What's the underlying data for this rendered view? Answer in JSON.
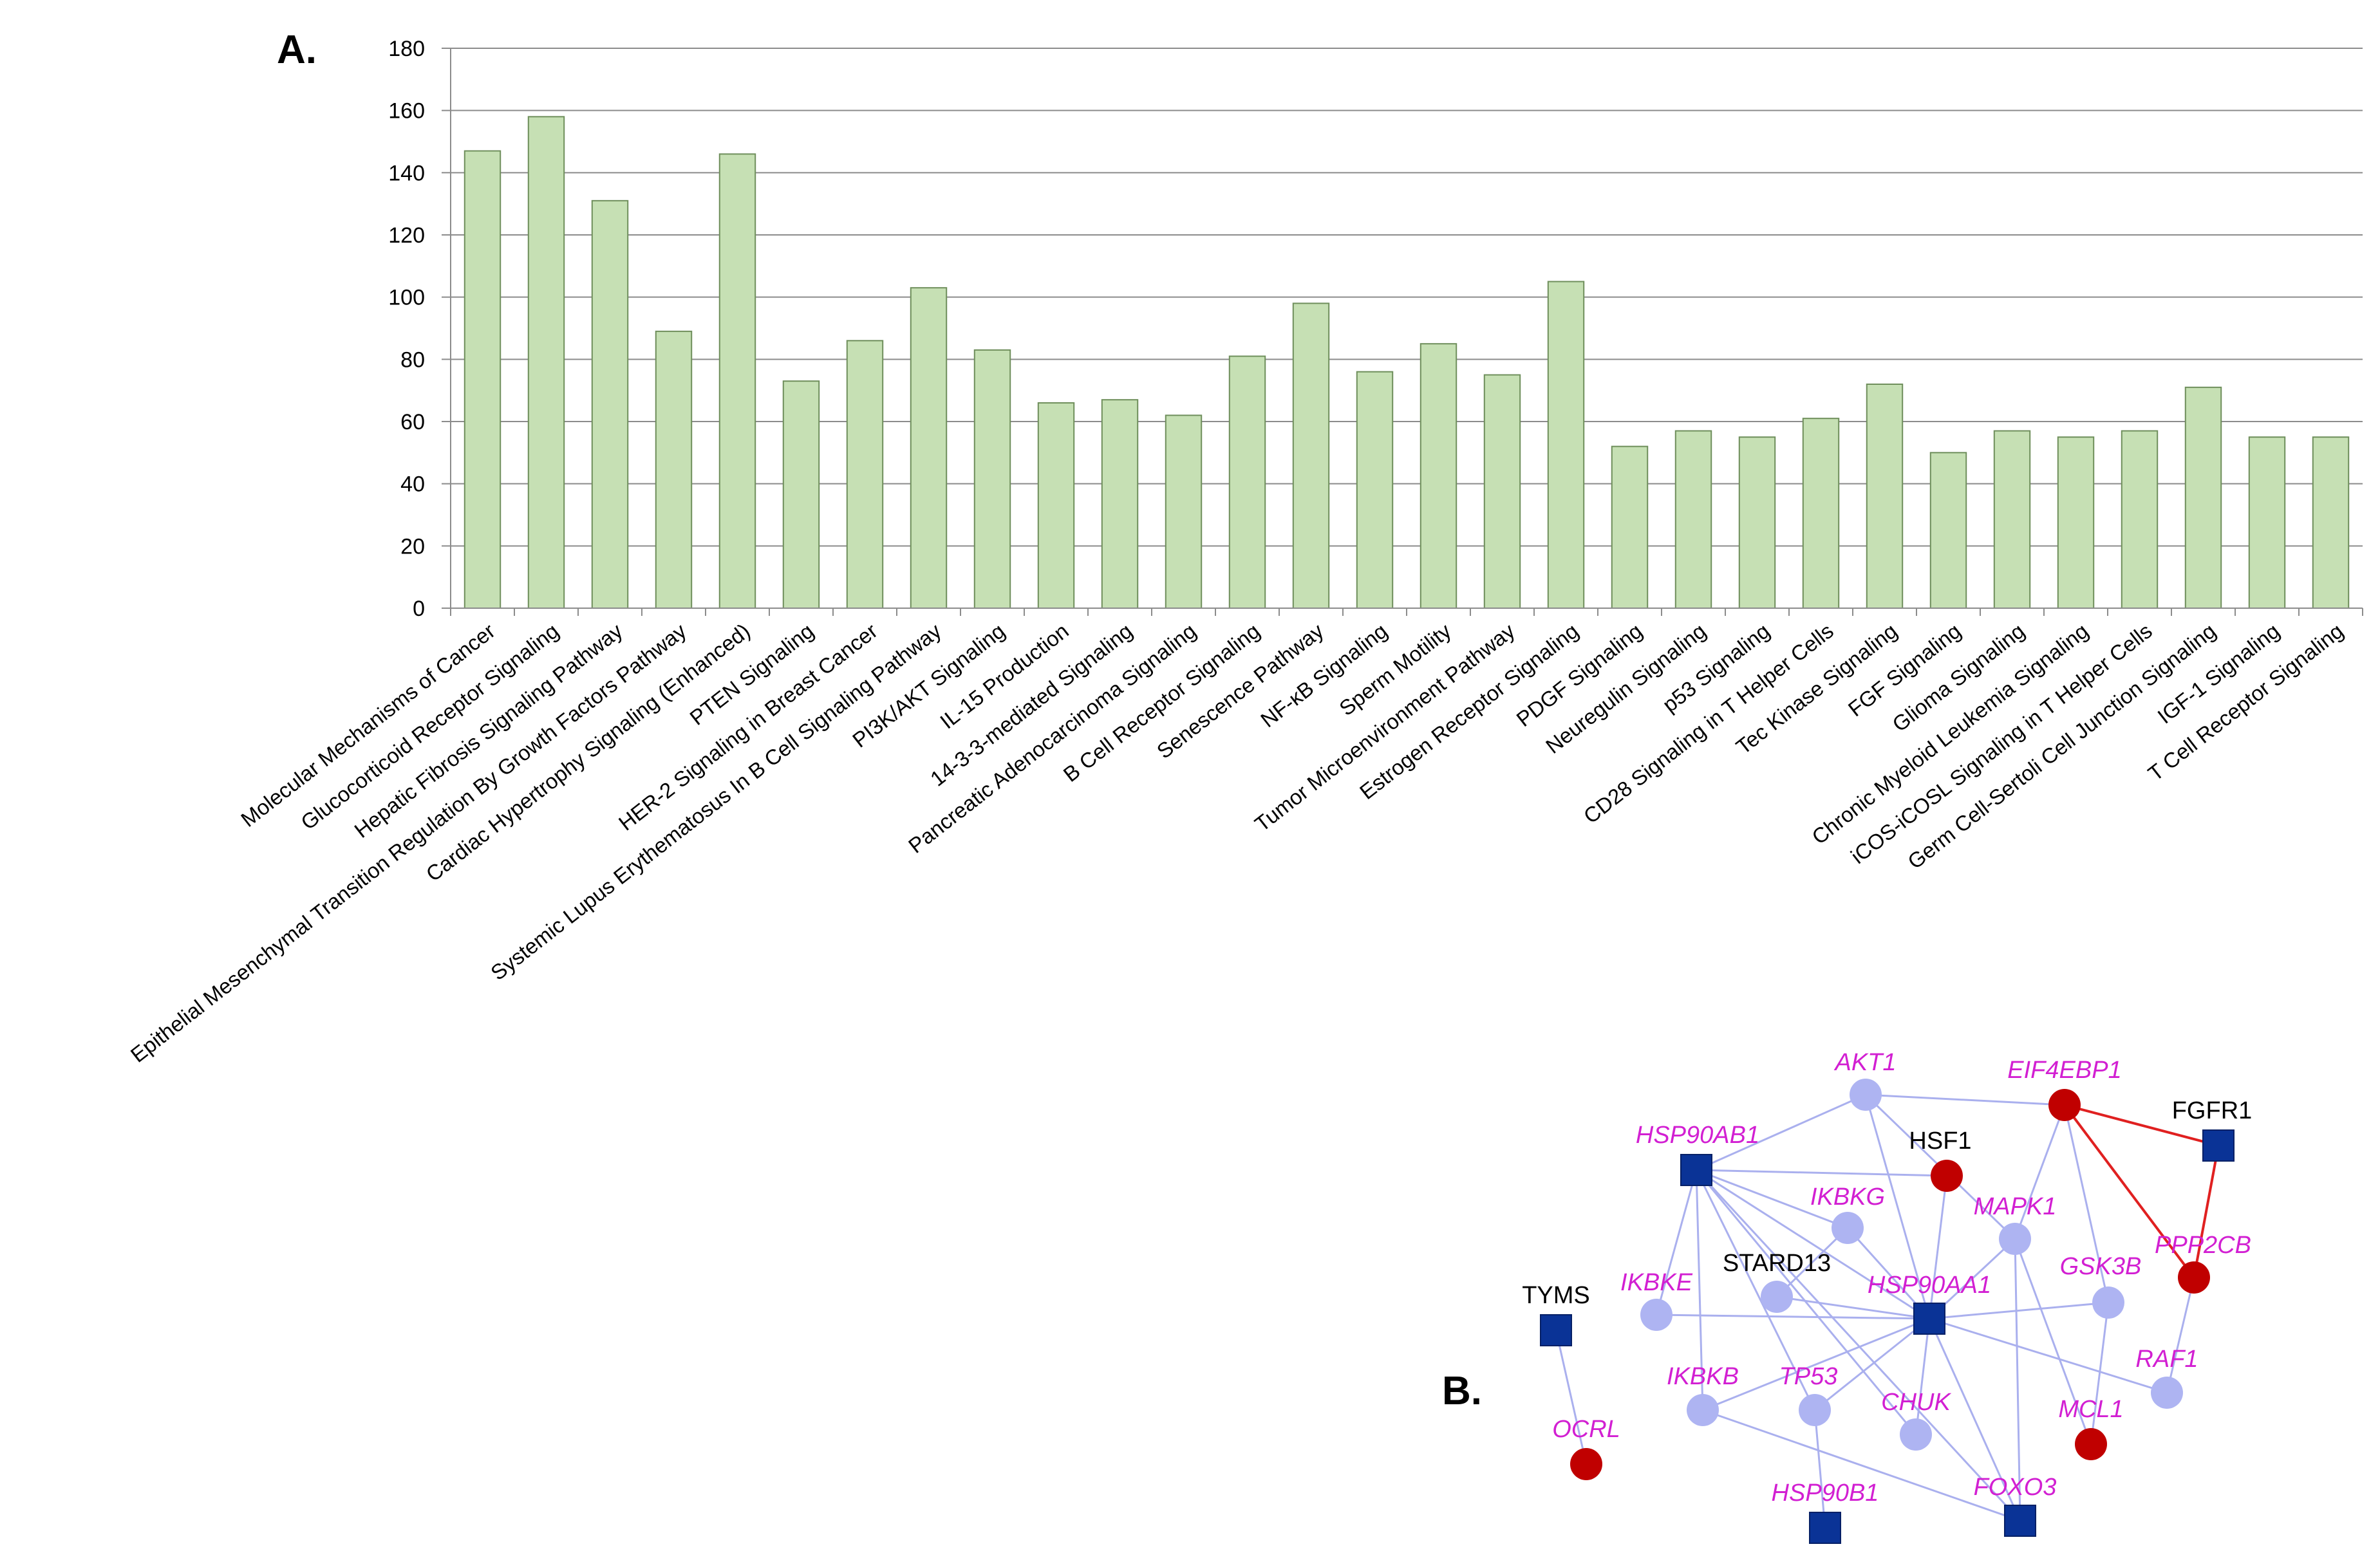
{
  "panels": {
    "a": "A.",
    "b": "B."
  },
  "colors": {
    "bar_fill": "#c6e0b4",
    "bar_stroke": "#6f8f5c",
    "grid": "#8c8c8c",
    "edge_default": "#aab0ee",
    "edge_highlight": "#e02020",
    "node_light": "#aeb4f2",
    "node_red": "#c00000",
    "node_square": "#0a3396",
    "label_magenta": "#d21fd2",
    "label_black": "#000000"
  },
  "chart_data": {
    "type": "bar",
    "title": "",
    "xlabel": "",
    "ylabel": "",
    "ylim": [
      0,
      180
    ],
    "yticks": [
      0,
      20,
      40,
      60,
      80,
      100,
      120,
      140,
      160,
      180
    ],
    "categories": [
      "Molecular Mechanisms of Cancer",
      "Glucocorticoid Receptor Signaling",
      "Hepatic Fibrosis Signaling Pathway",
      "Epithelial Mesenchymal Transition Regulation By Growth Factors Pathway",
      "Cardiac Hypertrophy Signaling (Enhanced)",
      "PTEN Signaling",
      "HER-2 Signaling in Breast Cancer",
      "Systemic Lupus Erythematosus In B Cell Signaling Pathway",
      "PI3K/AKT Signaling",
      "IL-15 Production",
      "14-3-3-mediated Signaling",
      "Pancreatic Adenocarcinoma Signaling",
      "B Cell Receptor Signaling",
      "Senescence Pathway",
      "NF-κB Signaling",
      "Sperm Motility",
      "Tumor Microenvironment Pathway",
      "Estrogen Receptor Signaling",
      "PDGF Signaling",
      "Neuregulin Signaling",
      "p53 Signaling",
      "CD28 Signaling in T Helper Cells",
      "Tec Kinase Signaling",
      "FGF Signaling",
      "Glioma Signaling",
      "Chronic Myeloid Leukemia Signaling",
      "iCOS-iCOSL Signaling in T Helper Cells",
      "Germ Cell-Sertoli Cell Junction Signaling",
      "IGF-1 Signaling",
      "T Cell Receptor Signaling"
    ],
    "values": [
      147,
      158,
      131,
      89,
      146,
      73,
      86,
      103,
      83,
      66,
      67,
      62,
      81,
      98,
      76,
      85,
      75,
      105,
      52,
      57,
      55,
      61,
      72,
      50,
      57,
      55,
      57,
      71,
      55,
      55
    ],
    "grid": true,
    "legend": "none"
  },
  "network": {
    "nodes": [
      {
        "id": "AKT1",
        "label": "AKT1",
        "shape": "circle",
        "color": "light",
        "label_color": "magenta",
        "italic": true
      },
      {
        "id": "EIF4EBP1",
        "label": "EIF4EBP1",
        "shape": "circle",
        "color": "red",
        "label_color": "magenta",
        "italic": true
      },
      {
        "id": "FGFR1",
        "label": "FGFR1",
        "shape": "square",
        "color": "blue",
        "label_color": "black",
        "italic": false
      },
      {
        "id": "HSP90AB1",
        "label": "HSP90AB1",
        "shape": "square",
        "color": "blue",
        "label_color": "magenta",
        "italic": true
      },
      {
        "id": "HSF1",
        "label": "HSF1",
        "shape": "circle",
        "color": "red",
        "label_color": "black",
        "italic": false
      },
      {
        "id": "IKBKG",
        "label": "IKBKG",
        "shape": "circle",
        "color": "light",
        "label_color": "magenta",
        "italic": true
      },
      {
        "id": "MAPK1",
        "label": "MAPK1",
        "shape": "circle",
        "color": "light",
        "label_color": "magenta",
        "italic": true
      },
      {
        "id": "PPP2CB",
        "label": "PPP2CB",
        "shape": "circle",
        "color": "red",
        "label_color": "magenta",
        "italic": true
      },
      {
        "id": "GSK3B",
        "label": "GSK3B",
        "shape": "circle",
        "color": "light",
        "label_color": "magenta",
        "italic": true
      },
      {
        "id": "STARD13",
        "label": "STARD13",
        "shape": "circle",
        "color": "light",
        "label_color": "black",
        "italic": false
      },
      {
        "id": "HSP90AA1",
        "label": "HSP90AA1",
        "shape": "square",
        "color": "blue",
        "label_color": "magenta",
        "italic": true
      },
      {
        "id": "IKBKE",
        "label": "IKBKE",
        "shape": "circle",
        "color": "light",
        "label_color": "magenta",
        "italic": true
      },
      {
        "id": "TYMS",
        "label": "TYMS",
        "shape": "square",
        "color": "blue",
        "label_color": "black",
        "italic": false
      },
      {
        "id": "RAF1",
        "label": "RAF1",
        "shape": "circle",
        "color": "light",
        "label_color": "magenta",
        "italic": true
      },
      {
        "id": "IKBKB",
        "label": "IKBKB",
        "shape": "circle",
        "color": "light",
        "label_color": "magenta",
        "italic": true
      },
      {
        "id": "TP53",
        "label": "TP53",
        "shape": "circle",
        "color": "light",
        "label_color": "magenta",
        "italic": true
      },
      {
        "id": "CHUK",
        "label": "CHUK",
        "shape": "circle",
        "color": "light",
        "label_color": "magenta",
        "italic": true
      },
      {
        "id": "MCL1",
        "label": "MCL1",
        "shape": "circle",
        "color": "red",
        "label_color": "magenta",
        "italic": true
      },
      {
        "id": "OCRL",
        "label": "OCRL",
        "shape": "circle",
        "color": "red",
        "label_color": "magenta",
        "italic": true
      },
      {
        "id": "FOXO3",
        "label": "FOXO3",
        "shape": "square",
        "color": "blue",
        "label_color": "magenta",
        "italic": true
      },
      {
        "id": "HSP90B1",
        "label": "HSP90B1",
        "shape": "square",
        "color": "blue",
        "label_color": "magenta",
        "italic": true
      }
    ],
    "edges": [
      [
        "AKT1",
        "EIF4EBP1",
        "default"
      ],
      [
        "AKT1",
        "HSP90AB1",
        "default"
      ],
      [
        "AKT1",
        "HSP90AA1",
        "default"
      ],
      [
        "AKT1",
        "MAPK1",
        "default"
      ],
      [
        "EIF4EBP1",
        "FGFR1",
        "highlight"
      ],
      [
        "EIF4EBP1",
        "PPP2CB",
        "highlight"
      ],
      [
        "FGFR1",
        "PPP2CB",
        "highlight"
      ],
      [
        "EIF4EBP1",
        "MAPK1",
        "default"
      ],
      [
        "EIF4EBP1",
        "GSK3B",
        "default"
      ],
      [
        "HSP90AB1",
        "HSF1",
        "default"
      ],
      [
        "HSP90AB1",
        "IKBKG",
        "default"
      ],
      [
        "HSP90AB1",
        "HSP90AA1",
        "default"
      ],
      [
        "HSP90AB1",
        "IKBKE",
        "default"
      ],
      [
        "HSP90AB1",
        "IKBKB",
        "default"
      ],
      [
        "HSP90AB1",
        "TP53",
        "default"
      ],
      [
        "HSP90AB1",
        "CHUK",
        "default"
      ],
      [
        "HSP90AB1",
        "FOXO3",
        "default"
      ],
      [
        "HSF1",
        "HSP90AA1",
        "default"
      ],
      [
        "IKBKG",
        "HSP90AA1",
        "default"
      ],
      [
        "IKBKG",
        "STARD13",
        "default"
      ],
      [
        "MAPK1",
        "HSP90AA1",
        "default"
      ],
      [
        "MAPK1",
        "MCL1",
        "default"
      ],
      [
        "MAPK1",
        "FOXO3",
        "default"
      ],
      [
        "GSK3B",
        "HSP90AA1",
        "default"
      ],
      [
        "GSK3B",
        "MCL1",
        "default"
      ],
      [
        "PPP2CB",
        "RAF1",
        "default"
      ],
      [
        "STARD13",
        "HSP90AA1",
        "default"
      ],
      [
        "IKBKE",
        "HSP90AA1",
        "default"
      ],
      [
        "HSP90AA1",
        "RAF1",
        "default"
      ],
      [
        "HSP90AA1",
        "IKBKB",
        "default"
      ],
      [
        "HSP90AA1",
        "TP53",
        "default"
      ],
      [
        "HSP90AA1",
        "CHUK",
        "default"
      ],
      [
        "HSP90AA1",
        "FOXO3",
        "default"
      ],
      [
        "IKBKB",
        "FOXO3",
        "default"
      ],
      [
        "TP53",
        "HSP90B1",
        "default"
      ],
      [
        "TYMS",
        "OCRL",
        "default"
      ]
    ]
  }
}
